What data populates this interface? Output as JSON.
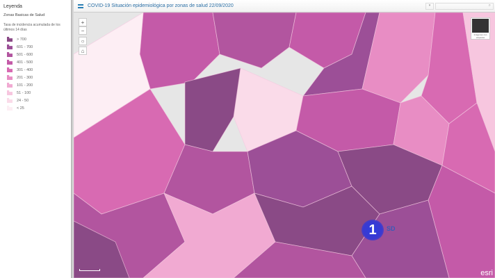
{
  "legend": {
    "title": "Leyenda",
    "layer": "Zonas Basicas de Salud",
    "description": "Tasa de incidencia acumulada de los últimos 14 días",
    "classes": [
      {
        "label": "> 700",
        "color": "#8a4a86"
      },
      {
        "label": "601 - 700",
        "color": "#9c4f97"
      },
      {
        "label": "501 - 600",
        "color": "#b2559f"
      },
      {
        "label": "401 - 500",
        "color": "#c45aa8"
      },
      {
        "label": "301 - 400",
        "color": "#d86ab2"
      },
      {
        "label": "201 - 300",
        "color": "#e88dc4"
      },
      {
        "label": "101 - 200",
        "color": "#f1aad2"
      },
      {
        "label": "51 - 100",
        "color": "#f7c6df"
      },
      {
        "label": "24 - 50",
        "color": "#fadbe9"
      },
      {
        "label": "< 25",
        "color": "#fdeef4"
      }
    ]
  },
  "header": {
    "title": "COVID-19 Situación epidemiológica por zonas de salud 22/09/2020",
    "dropdown": "▾",
    "search_icon": "⌕"
  },
  "map": {
    "controls": {
      "zoom_in": "+",
      "zoom_out": "−",
      "locate": "○",
      "home": "⌂"
    },
    "basemap_label": "Imágenes con etiquetas",
    "attribution": "esri"
  },
  "overlay": {
    "channel": "1",
    "quality": "SD"
  }
}
